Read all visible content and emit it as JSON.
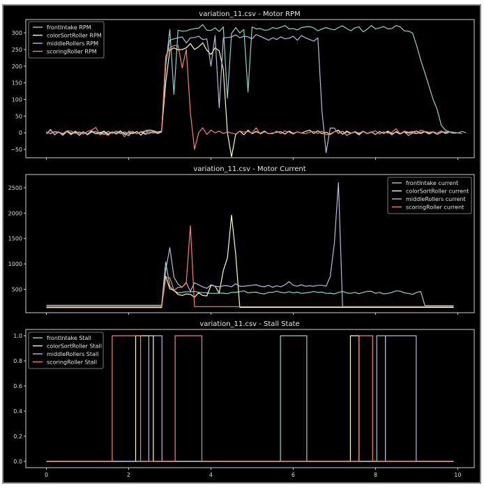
{
  "figure": {
    "background": "#000000",
    "frame_border": "#8a8a8a"
  },
  "chart_data": [
    {
      "type": "line",
      "title": "variation_11.csv - Motor RPM",
      "xlabel": "",
      "ylabel": "",
      "xlim": [
        -0.5,
        10.4
      ],
      "ylim": [
        -75,
        340
      ],
      "yticks": [
        -50,
        0,
        50,
        100,
        150,
        200,
        250,
        300
      ],
      "xticks": [
        0,
        2,
        4,
        6,
        8,
        10
      ],
      "show_xtick_labels": false,
      "grid": false,
      "legend_position": "upper left",
      "x_start": 0,
      "x_step": 0.1,
      "series": [
        {
          "name": "frontIntake RPM",
          "color": "#8dd3c7",
          "values": [
            -3,
            8,
            -5,
            2,
            -3,
            4,
            -6,
            5,
            -2,
            3,
            -4,
            6,
            -3,
            2,
            -5,
            4,
            -2,
            5,
            -3,
            3,
            -4,
            2,
            -3,
            4,
            -2,
            3,
            -1,
            2,
            3,
            200,
            310,
            115,
            308,
            305,
            306,
            310,
            313,
            314,
            325,
            308,
            307,
            315,
            304,
            318,
            104,
            298,
            316,
            300,
            310,
            122,
            318,
            312,
            313,
            308,
            309,
            316,
            313,
            317,
            322,
            312,
            313,
            309,
            316,
            318,
            319,
            315,
            306,
            312,
            316,
            312,
            309,
            316,
            321,
            313,
            306,
            315,
            318,
            303,
            311,
            322,
            312,
            315,
            319,
            312,
            313,
            322,
            318,
            306,
            305,
            300,
            262,
            218,
            180,
            140,
            100,
            70,
            22,
            8,
            3,
            2,
            -1,
            4,
            0
          ]
        },
        {
          "name": "colorSortRoller RPM",
          "color": "#ffffb3",
          "values": [
            2,
            -2,
            3,
            1,
            -4,
            5,
            -2,
            3,
            -8,
            2,
            -6,
            4,
            -3,
            -1,
            5,
            -4,
            3,
            -2,
            6,
            -5,
            2,
            -3,
            4,
            -7,
            6,
            8,
            6,
            2,
            5,
            150,
            248,
            255,
            249,
            250,
            255,
            268,
            250,
            258,
            270,
            248,
            235,
            255,
            246,
            190,
            0,
            -72,
            -5,
            5,
            -6,
            8,
            -3,
            4,
            -2,
            5,
            -3,
            -1,
            2,
            3,
            -4,
            5,
            -2,
            3,
            -1,
            4,
            8,
            -2,
            6,
            -3,
            2,
            -5,
            3,
            8,
            -4,
            5,
            -1,
            2,
            -6,
            4,
            -2,
            3,
            -5,
            4,
            -2,
            5,
            -3,
            2,
            -4,
            3,
            -1,
            2,
            5,
            -3,
            4,
            -2,
            3,
            -1,
            5,
            -2,
            2,
            0
          ]
        },
        {
          "name": "middleRollers RPM",
          "color": "#bebada",
          "values": [
            -4,
            10,
            -6,
            3,
            -8,
            4,
            -5,
            2,
            -7,
            3,
            -6,
            2,
            4,
            -5,
            3,
            -6,
            2,
            -4,
            3,
            -2,
            -9,
            4,
            -3,
            2,
            -5,
            -2,
            4,
            -3,
            2,
            210,
            278,
            282,
            285,
            288,
            270,
            285,
            286,
            290,
            280,
            282,
            200,
            292,
            75,
            285,
            286,
            288,
            294,
            285,
            290,
            288,
            282,
            295,
            290,
            284,
            278,
            285,
            280,
            288,
            282,
            284,
            290,
            278,
            292,
            285,
            280,
            275,
            285,
            65,
            -60,
            14,
            14,
            -2,
            5,
            -8,
            -2,
            3,
            -1,
            4,
            -3,
            2,
            -5,
            3,
            -1,
            2,
            -6,
            4,
            -2,
            3,
            -8,
            -1,
            -3,
            2,
            3,
            -4,
            2,
            -5,
            1,
            3,
            2,
            -2,
            0,
            -3
          ]
        },
        {
          "name": "scoringRoller RPM",
          "color": "#fb8072",
          "values": [
            3,
            -3,
            4,
            2,
            -2,
            6,
            5,
            -2,
            3,
            -4,
            4,
            8,
            16,
            -6,
            -2,
            -8,
            3,
            -4,
            3,
            -12,
            5,
            2,
            -3,
            3,
            5,
            2,
            3,
            0,
            2,
            230,
            255,
            262,
            262,
            195,
            250,
            60,
            -50,
            0,
            15,
            -5,
            8,
            0,
            5,
            -2,
            3,
            -1,
            -4,
            5,
            2,
            4,
            -1,
            15,
            -4,
            3,
            -2,
            -3,
            5,
            -3,
            6,
            2,
            -4,
            3,
            -1,
            -3,
            2,
            4,
            -2,
            5,
            -6,
            -3,
            3,
            6,
            -5,
            2,
            -2,
            4,
            -3,
            5,
            -2,
            2,
            6,
            -4,
            3,
            -1,
            2,
            12,
            -3,
            5,
            2,
            4,
            -2,
            8,
            4,
            2,
            3,
            -1,
            4,
            1,
            2,
            0
          ]
        }
      ]
    },
    {
      "type": "line",
      "title": "variation_11.csv - Motor Current",
      "xlabel": "",
      "ylabel": "",
      "xlim": [
        -0.5,
        10.4
      ],
      "ylim": [
        40,
        2760
      ],
      "yticks": [
        500,
        1000,
        1500,
        2000,
        2500
      ],
      "xticks": [
        0,
        2,
        4,
        6,
        8,
        10
      ],
      "show_xtick_labels": false,
      "grid": false,
      "legend_position": "upper right",
      "x_start": 0,
      "x_step": 0.1,
      "series": [
        {
          "name": "frontIntake current",
          "color": "#8dd3c7",
          "values": [
            185,
            185,
            185,
            185,
            185,
            185,
            185,
            185,
            185,
            185,
            185,
            185,
            185,
            185,
            185,
            185,
            185,
            185,
            185,
            185,
            185,
            185,
            185,
            185,
            185,
            185,
            185,
            185,
            185,
            1040,
            560,
            470,
            430,
            440,
            455,
            450,
            460,
            440,
            435,
            430,
            420,
            420,
            425,
            425,
            415,
            440,
            440,
            455,
            470,
            430,
            440,
            445,
            420,
            410,
            440,
            440,
            465,
            440,
            430,
            455,
            430,
            445,
            420,
            430,
            440,
            460,
            440,
            445,
            420,
            425,
            410,
            440,
            460,
            430,
            420,
            440,
            415,
            440,
            460,
            460,
            420,
            440,
            410,
            420,
            440,
            470,
            465,
            430,
            420,
            400,
            440,
            460,
            180,
            180,
            180,
            180,
            180,
            180,
            180,
            180
          ]
        },
        {
          "name": "colorSortRoller current",
          "color": "#ffffb3",
          "values": [
            140,
            140,
            140,
            140,
            140,
            140,
            140,
            140,
            140,
            140,
            140,
            140,
            140,
            140,
            140,
            140,
            140,
            140,
            140,
            140,
            140,
            140,
            140,
            140,
            140,
            140,
            140,
            140,
            140,
            760,
            510,
            480,
            400,
            380,
            410,
            400,
            345,
            430,
            380,
            370,
            580,
            560,
            430,
            870,
            1120,
            1960,
            1200,
            145,
            145,
            145,
            145,
            145,
            145,
            145,
            145,
            145,
            145,
            145,
            145,
            145,
            145,
            145,
            145,
            145,
            145,
            145,
            145,
            145,
            145,
            145,
            145,
            145,
            145,
            145,
            145,
            145,
            145,
            145,
            145,
            145,
            145,
            145,
            145,
            145,
            145,
            145,
            145,
            145,
            145,
            145,
            145,
            145,
            145,
            145,
            145,
            145,
            145,
            145,
            145,
            145
          ]
        },
        {
          "name": "middleRollers current",
          "color": "#bebada",
          "values": [
            160,
            160,
            160,
            160,
            160,
            160,
            160,
            160,
            160,
            160,
            160,
            160,
            160,
            160,
            160,
            160,
            160,
            160,
            160,
            160,
            160,
            160,
            160,
            160,
            160,
            160,
            160,
            160,
            160,
            880,
            1320,
            740,
            600,
            540,
            630,
            460,
            630,
            590,
            550,
            520,
            590,
            560,
            550,
            570,
            570,
            550,
            610,
            560,
            560,
            570,
            580,
            590,
            560,
            550,
            580,
            540,
            570,
            550,
            590,
            650,
            580,
            560,
            590,
            560,
            570,
            560,
            580,
            580,
            560,
            750,
            1400,
            2600,
            160,
            160,
            160,
            160,
            160,
            160,
            160,
            160,
            160,
            160,
            160,
            160,
            160,
            160,
            160,
            160,
            160,
            160,
            160,
            160,
            160,
            160,
            160,
            160,
            160,
            160,
            160,
            160
          ]
        },
        {
          "name": "scoringRoller current",
          "color": "#fb8072",
          "values": [
            160,
            160,
            160,
            160,
            160,
            160,
            160,
            160,
            160,
            160,
            160,
            160,
            160,
            160,
            160,
            160,
            160,
            160,
            160,
            160,
            160,
            160,
            160,
            160,
            160,
            160,
            160,
            160,
            160,
            730,
            730,
            480,
            540,
            540,
            640,
            1750,
            160,
            160,
            160,
            160,
            160,
            160,
            160,
            160,
            160,
            160,
            160,
            160,
            160,
            160,
            160,
            160,
            160,
            160,
            160,
            160,
            160,
            160,
            160,
            160,
            160,
            160,
            160,
            160,
            160,
            160,
            160,
            160,
            160,
            160,
            160,
            160,
            160,
            160,
            160,
            160,
            160,
            160,
            160,
            160,
            160,
            160,
            160,
            160,
            160,
            160,
            160,
            160,
            160,
            160,
            160,
            160,
            160,
            160,
            160,
            160,
            160,
            160,
            160,
            160
          ]
        }
      ]
    },
    {
      "type": "line",
      "title": "variation_11.csv - Stall State",
      "xlabel": "",
      "ylabel": "",
      "xlim": [
        -0.5,
        10.4
      ],
      "ylim": [
        -0.05,
        1.05
      ],
      "yticks": [
        0.0,
        0.2,
        0.4,
        0.6,
        0.8,
        1.0
      ],
      "ytick_labels": [
        "0.0",
        "0.2",
        "0.4",
        "0.6",
        "0.8",
        "1.0"
      ],
      "xticks": [
        0,
        2,
        4,
        6,
        8,
        10
      ],
      "xtick_labels": [
        "0",
        "2",
        "4",
        "6",
        "8",
        "10"
      ],
      "show_xtick_labels": true,
      "grid": false,
      "legend_position": "upper left",
      "x_range": [
        0,
        9.9
      ],
      "series": [
        {
          "name": "frontIntake Stall",
          "color": "#8dd3c7",
          "intervals": [
            [
              5.69,
              6.33
            ],
            [
              8.03,
              8.24
            ]
          ]
        },
        {
          "name": "colorSortRoller Stall",
          "color": "#ffffb3",
          "intervals": [
            [
              2.17,
              2.6
            ],
            [
              7.39,
              7.6
            ]
          ]
        },
        {
          "name": "middleRollers Stall",
          "color": "#bebada",
          "intervals": [
            [
              2.49,
              2.81
            ],
            [
              8.24,
              8.99
            ]
          ]
        },
        {
          "name": "scoringRoller Stall",
          "color": "#fb8072",
          "intervals": [
            [
              1.6,
              2.29
            ],
            [
              3.13,
              3.78
            ],
            [
              7.6,
              7.93
            ]
          ]
        }
      ]
    }
  ]
}
